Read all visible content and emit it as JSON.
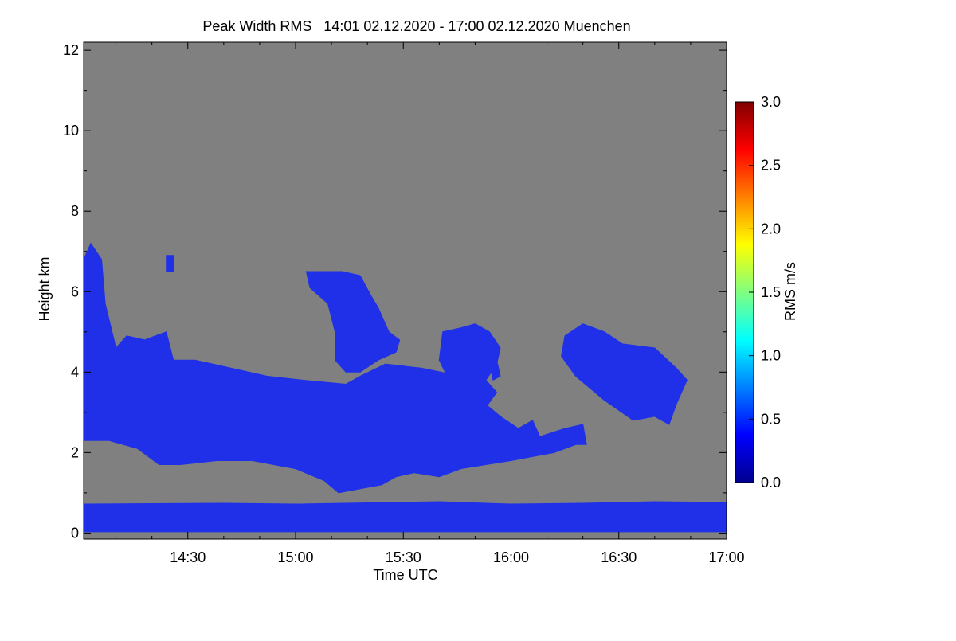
{
  "chart_data": {
    "type": "heatmap",
    "title": "Peak Width RMS   14:01 02.12.2020 - 17:00 02.12.2020 Muenchen",
    "xlabel": "Time UTC",
    "ylabel": "Height km",
    "colorbar_label": "RMS m/s",
    "xlim": [
      841,
      1020
    ],
    "ylim": [
      -0.15,
      12.2
    ],
    "x_ticks": [
      {
        "value": 870,
        "label": "14:30"
      },
      {
        "value": 900,
        "label": "15:00"
      },
      {
        "value": 930,
        "label": "15:30"
      },
      {
        "value": 960,
        "label": "16:00"
      },
      {
        "value": 990,
        "label": "16:30"
      },
      {
        "value": 1020,
        "label": "17:00"
      }
    ],
    "y_ticks": [
      {
        "value": 0,
        "label": "0"
      },
      {
        "value": 2,
        "label": "2"
      },
      {
        "value": 4,
        "label": "4"
      },
      {
        "value": 6,
        "label": "6"
      },
      {
        "value": 8,
        "label": "8"
      },
      {
        "value": 10,
        "label": "10"
      },
      {
        "value": 12,
        "label": "12"
      }
    ],
    "colorbar_range": [
      0,
      3.0
    ],
    "colorbar_ticks": [
      {
        "value": 0.0,
        "label": "0.0"
      },
      {
        "value": 0.5,
        "label": "0.5"
      },
      {
        "value": 1.0,
        "label": "1.0"
      },
      {
        "value": 1.5,
        "label": "1.5"
      },
      {
        "value": 2.0,
        "label": "2.0"
      },
      {
        "value": 2.5,
        "label": "2.5"
      },
      {
        "value": 3.0,
        "label": "3.0"
      }
    ],
    "colormap": [
      "#00008f",
      "#0000ff",
      "#0080ff",
      "#00ffff",
      "#80ff80",
      "#ffff00",
      "#ff8000",
      "#ff0000",
      "#800000"
    ],
    "missing_color": "#808080",
    "cloud_fill": "#1f30e8",
    "cloud_regions": [
      {
        "name": "main-layer",
        "points": [
          [
            841,
            6.8
          ],
          [
            843,
            7.2
          ],
          [
            846,
            6.8
          ],
          [
            847,
            5.7
          ],
          [
            850,
            4.6
          ],
          [
            853,
            4.9
          ],
          [
            858,
            4.8
          ],
          [
            864,
            5.0
          ],
          [
            866,
            4.3
          ],
          [
            872,
            4.3
          ],
          [
            882,
            4.1
          ],
          [
            892,
            3.9
          ],
          [
            902,
            3.8
          ],
          [
            914,
            3.7
          ],
          [
            918,
            3.9
          ],
          [
            925,
            4.2
          ],
          [
            935,
            4.1
          ],
          [
            946,
            3.9
          ],
          [
            953,
            3.2
          ],
          [
            957,
            2.9
          ],
          [
            962,
            2.6
          ],
          [
            966,
            2.8
          ],
          [
            968,
            2.4
          ],
          [
            975,
            2.6
          ],
          [
            980,
            2.7
          ],
          [
            981,
            2.2
          ],
          [
            978,
            2.2
          ],
          [
            972,
            2.0
          ],
          [
            966,
            1.9
          ],
          [
            960,
            1.8
          ],
          [
            953,
            1.7
          ],
          [
            946,
            1.6
          ],
          [
            940,
            1.4
          ],
          [
            933,
            1.5
          ],
          [
            928,
            1.4
          ],
          [
            924,
            1.2
          ],
          [
            918,
            1.1
          ],
          [
            912,
            1.0
          ],
          [
            908,
            1.3
          ],
          [
            900,
            1.6
          ],
          [
            888,
            1.8
          ],
          [
            878,
            1.8
          ],
          [
            868,
            1.7
          ],
          [
            862,
            1.7
          ],
          [
            856,
            2.1
          ],
          [
            848,
            2.3
          ],
          [
            841,
            2.3
          ]
        ]
      },
      {
        "name": "upper-cell",
        "points": [
          [
            903,
            6.5
          ],
          [
            908,
            6.5
          ],
          [
            913,
            6.5
          ],
          [
            918,
            6.4
          ],
          [
            921,
            5.9
          ],
          [
            923,
            5.6
          ],
          [
            926,
            5.0
          ],
          [
            929,
            4.8
          ],
          [
            928,
            4.5
          ],
          [
            923,
            4.3
          ],
          [
            918,
            4.0
          ],
          [
            914,
            4.0
          ],
          [
            911,
            4.3
          ],
          [
            911,
            5.0
          ],
          [
            909,
            5.7
          ],
          [
            904,
            6.1
          ]
        ]
      },
      {
        "name": "mid-cell",
        "points": [
          [
            941,
            5.0
          ],
          [
            946,
            5.1
          ],
          [
            950,
            5.2
          ],
          [
            954,
            5.0
          ],
          [
            957,
            4.6
          ],
          [
            956,
            4.2
          ],
          [
            953,
            3.8
          ],
          [
            956,
            3.5
          ],
          [
            952,
            3.0
          ],
          [
            946,
            3.2
          ],
          [
            940,
            4.3
          ]
        ]
      },
      {
        "name": "small-cell-a",
        "points": [
          [
            946,
            3.0
          ],
          [
            952,
            3.2
          ],
          [
            955,
            3.0
          ],
          [
            951,
            2.7
          ],
          [
            947,
            2.8
          ]
        ]
      },
      {
        "name": "east-cell",
        "points": [
          [
            975,
            4.9
          ],
          [
            980,
            5.2
          ],
          [
            986,
            5.0
          ],
          [
            991,
            4.7
          ],
          [
            1000,
            4.6
          ],
          [
            1006,
            4.1
          ],
          [
            1009,
            3.8
          ],
          [
            1006,
            3.2
          ],
          [
            1004,
            2.7
          ],
          [
            1000,
            2.9
          ],
          [
            994,
            2.8
          ],
          [
            986,
            3.3
          ],
          [
            978,
            3.9
          ],
          [
            974,
            4.4
          ]
        ]
      },
      {
        "name": "fragment-b",
        "points": [
          [
            864,
            6.9
          ],
          [
            866,
            6.9
          ],
          [
            866,
            6.5
          ],
          [
            864,
            6.5
          ]
        ]
      },
      {
        "name": "fragment-c",
        "points": [
          [
            954,
            4.2
          ],
          [
            956,
            4.3
          ],
          [
            957,
            3.9
          ],
          [
            955,
            3.8
          ]
        ]
      },
      {
        "name": "boundary-layer",
        "points": [
          [
            841,
            0.72
          ],
          [
            860,
            0.73
          ],
          [
            880,
            0.74
          ],
          [
            900,
            0.72
          ],
          [
            920,
            0.75
          ],
          [
            940,
            0.78
          ],
          [
            960,
            0.72
          ],
          [
            980,
            0.74
          ],
          [
            1000,
            0.78
          ],
          [
            1020,
            0.76
          ],
          [
            1020,
            0.03
          ],
          [
            841,
            0.03
          ]
        ]
      }
    ]
  }
}
